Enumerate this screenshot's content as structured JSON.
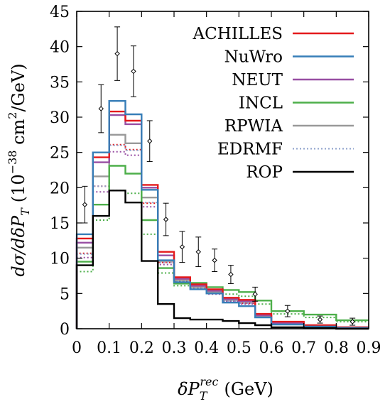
{
  "chart_data": {
    "type": "line",
    "subtype": "step-histogram",
    "xlabel": "δP_T^rec (GeV)",
    "xlabel_main": "δP",
    "xlabel_sub": "T",
    "xlabel_sup": "rec",
    "xlabel_unit": "(GeV)",
    "ylabel": "dσ/dδP_T (10^-38 cm²/GeV)",
    "ylabel_main": "dσ/dδP",
    "ylabel_sub": "T",
    "ylabel_unit_pre": "(10",
    "ylabel_exp": "−38",
    "ylabel_unit_mid": " cm",
    "ylabel_exp2": "2",
    "ylabel_unit_post": "/GeV)",
    "xlim": [
      0,
      0.9
    ],
    "ylim": [
      0,
      45
    ],
    "xticks": [
      "0",
      "0.1",
      "0.2",
      "0.3",
      "0.4",
      "0.5",
      "0.6",
      "0.7",
      "0.8",
      "0.9"
    ],
    "yticks": [
      "0",
      "5",
      "10",
      "15",
      "20",
      "25",
      "30",
      "35",
      "40",
      "45"
    ],
    "grid": false,
    "legend_position": "top-right",
    "bin_edges": [
      0,
      0.05,
      0.1,
      0.15,
      0.2,
      0.25,
      0.3,
      0.35,
      0.4,
      0.45,
      0.5,
      0.55,
      0.6,
      0.7,
      0.8,
      0.9
    ],
    "series": [
      {
        "name": "ACHILLES",
        "color": "#e41a1c",
        "dash": "solid",
        "values": [
          12.8,
          24.3,
          30.8,
          29.5,
          20.4,
          10.9,
          7.3,
          6.3,
          5.6,
          4.4,
          4.1,
          2.1,
          1.0,
          0.5,
          0.2
        ]
      },
      {
        "name": "NuWro",
        "color": "#377eb8",
        "dash": "solid",
        "values": [
          13.4,
          25.0,
          32.3,
          30.4,
          19.7,
          9.7,
          6.6,
          5.6,
          5.0,
          3.7,
          3.2,
          1.6,
          0.6,
          0.3,
          0.1
        ]
      },
      {
        "name": "NEUT",
        "color": "#984ea3",
        "dash": "solid",
        "values": [
          12.2,
          23.6,
          30.3,
          29.0,
          20.0,
          10.4,
          7.1,
          6.1,
          5.4,
          4.2,
          3.9,
          1.9,
          0.8,
          0.4,
          0.2
        ]
      },
      {
        "name": "INCL",
        "color": "#4daf4a",
        "dash": "solid",
        "values": [
          9.5,
          17.6,
          23.1,
          22.0,
          15.4,
          8.6,
          6.4,
          6.5,
          5.9,
          5.5,
          5.2,
          4.0,
          2.5,
          2.0,
          1.2
        ]
      },
      {
        "name": "RPWIA",
        "color": "#999999",
        "dash": "solid",
        "values": [
          11.5,
          21.6,
          27.5,
          26.3,
          18.6,
          9.6,
          6.9,
          5.9,
          5.2,
          4.1,
          3.8,
          1.8,
          0.7,
          0.3,
          0.1
        ]
      },
      {
        "name": "EDRMF",
        "color": "#8da0cb",
        "dash": "dotted",
        "values": [
          10.6,
          20.2,
          26.0,
          25.3,
          17.9,
          9.4,
          6.7,
          5.7,
          5.0,
          3.9,
          3.6,
          1.7,
          0.6,
          0.3,
          0.1
        ]
      },
      {
        "name": "ROP",
        "color": "#000000",
        "dash": "solid",
        "values": [
          9.0,
          16.0,
          19.6,
          17.9,
          9.6,
          3.5,
          1.5,
          1.3,
          1.3,
          1.1,
          0.8,
          0.5,
          0.2,
          0.1,
          0.0
        ]
      }
    ],
    "extra_series": [
      {
        "color": "#e41a1c",
        "dash": "dotted",
        "values": [
          10.7,
          20.2,
          26.1,
          25.4,
          17.8,
          9.4,
          6.8,
          5.8,
          5.2,
          4.0,
          3.6,
          1.8,
          0.7,
          0.3,
          0.1
        ]
      },
      {
        "color": "#4daf4a",
        "dash": "dotted",
        "values": [
          8.1,
          15.4,
          19.6,
          19.2,
          13.4,
          7.9,
          6.1,
          6.0,
          5.4,
          4.9,
          4.6,
          3.5,
          2.1,
          1.6,
          1.0
        ]
      },
      {
        "color": "#984ea3",
        "dash": "dotted",
        "values": [
          10.1,
          19.4,
          25.1,
          24.6,
          17.3,
          9.1,
          6.5,
          5.6,
          4.9,
          3.9,
          3.5,
          1.7,
          0.6,
          0.3,
          0.1
        ]
      }
    ],
    "data_points": {
      "x": [
        0.025,
        0.075,
        0.125,
        0.175,
        0.225,
        0.275,
        0.325,
        0.375,
        0.425,
        0.475,
        0.55,
        0.65,
        0.75,
        0.85
      ],
      "y": [
        17.6,
        31.2,
        39.0,
        36.5,
        26.6,
        15.5,
        11.6,
        10.9,
        9.7,
        7.7,
        4.9,
        2.5,
        1.3,
        1.0
      ],
      "err": [
        2.6,
        3.4,
        3.8,
        3.6,
        2.9,
        2.3,
        2.2,
        2.1,
        1.6,
        1.3,
        1.0,
        0.8,
        0.5,
        0.5
      ]
    }
  }
}
